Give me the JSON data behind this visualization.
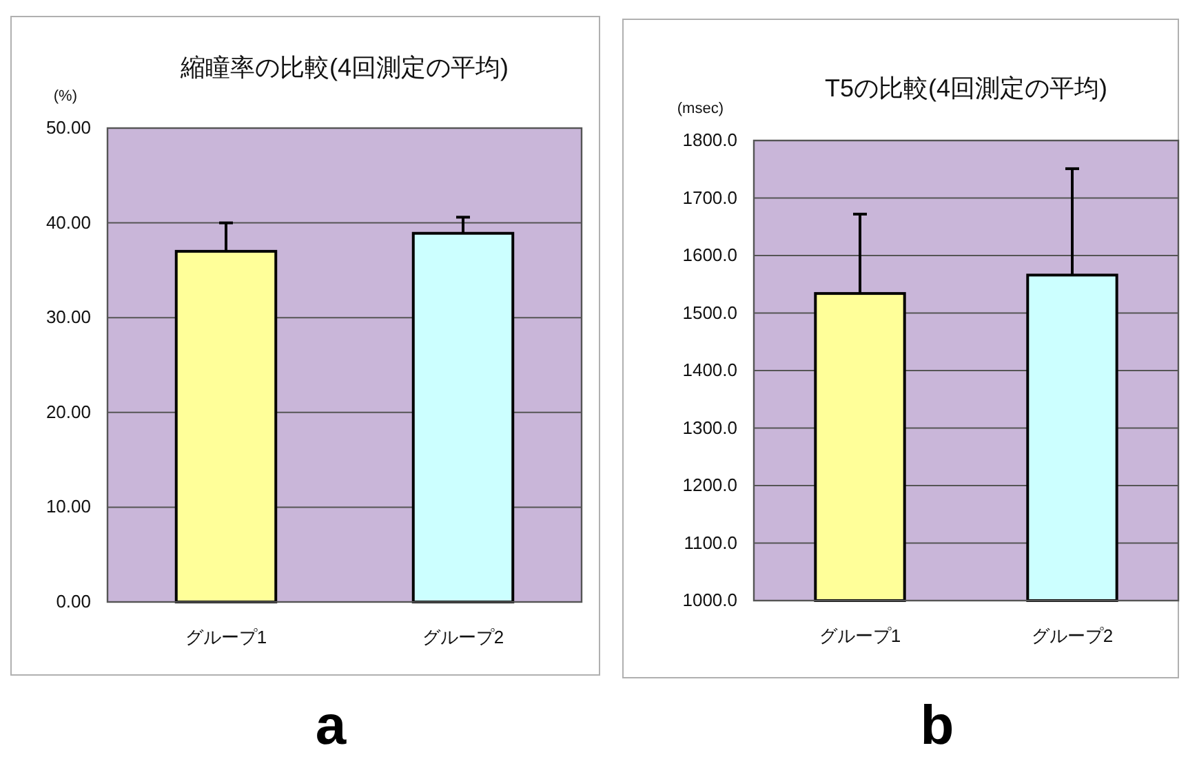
{
  "chart_data": [
    {
      "type": "bar",
      "title": "縮瞳率の比較(4回測定の平均)",
      "ylabel": "(%)",
      "categories": [
        "グループ1",
        "グループ2"
      ],
      "values": [
        37.0,
        38.9
      ],
      "colors": [
        "#ffff99",
        "#ccffff"
      ],
      "errors": [
        [
          37.0,
          40.0
        ],
        [
          38.9,
          40.6
        ]
      ],
      "ylim": [
        0,
        50
      ],
      "yticks": [
        {
          "value": 0,
          "label": "0.00"
        },
        {
          "value": 10,
          "label": "10.00"
        },
        {
          "value": 20,
          "label": "20.00"
        },
        {
          "value": 30,
          "label": "30.00"
        },
        {
          "value": 40,
          "label": "40.00"
        },
        {
          "value": 50,
          "label": "50.00"
        }
      ],
      "grid": "y",
      "annotations": [
        "a"
      ]
    },
    {
      "type": "bar",
      "title": "T5の比較(4回測定の平均)",
      "ylabel": "(msec)",
      "categories": [
        "グループ1",
        "グループ2"
      ],
      "values": [
        1534,
        1566
      ],
      "colors": [
        "#ffff99",
        "#ccffff"
      ],
      "errors": [
        [
          1534,
          1672
        ],
        [
          1566,
          1751
        ]
      ],
      "ylim": [
        1000,
        1800
      ],
      "yticks": [
        {
          "value": 1000,
          "label": "1000.0"
        },
        {
          "value": 1100,
          "label": "1100.0"
        },
        {
          "value": 1200,
          "label": "1200.0"
        },
        {
          "value": 1300,
          "label": "1300.0"
        },
        {
          "value": 1400,
          "label": "1400.0"
        },
        {
          "value": 1500,
          "label": "1500.0"
        },
        {
          "value": 1600,
          "label": "1600.0"
        },
        {
          "value": 1700,
          "label": "1700.0"
        },
        {
          "value": 1800,
          "label": "1800.0"
        }
      ],
      "grid": "y",
      "annotations": [
        "b"
      ]
    }
  ]
}
